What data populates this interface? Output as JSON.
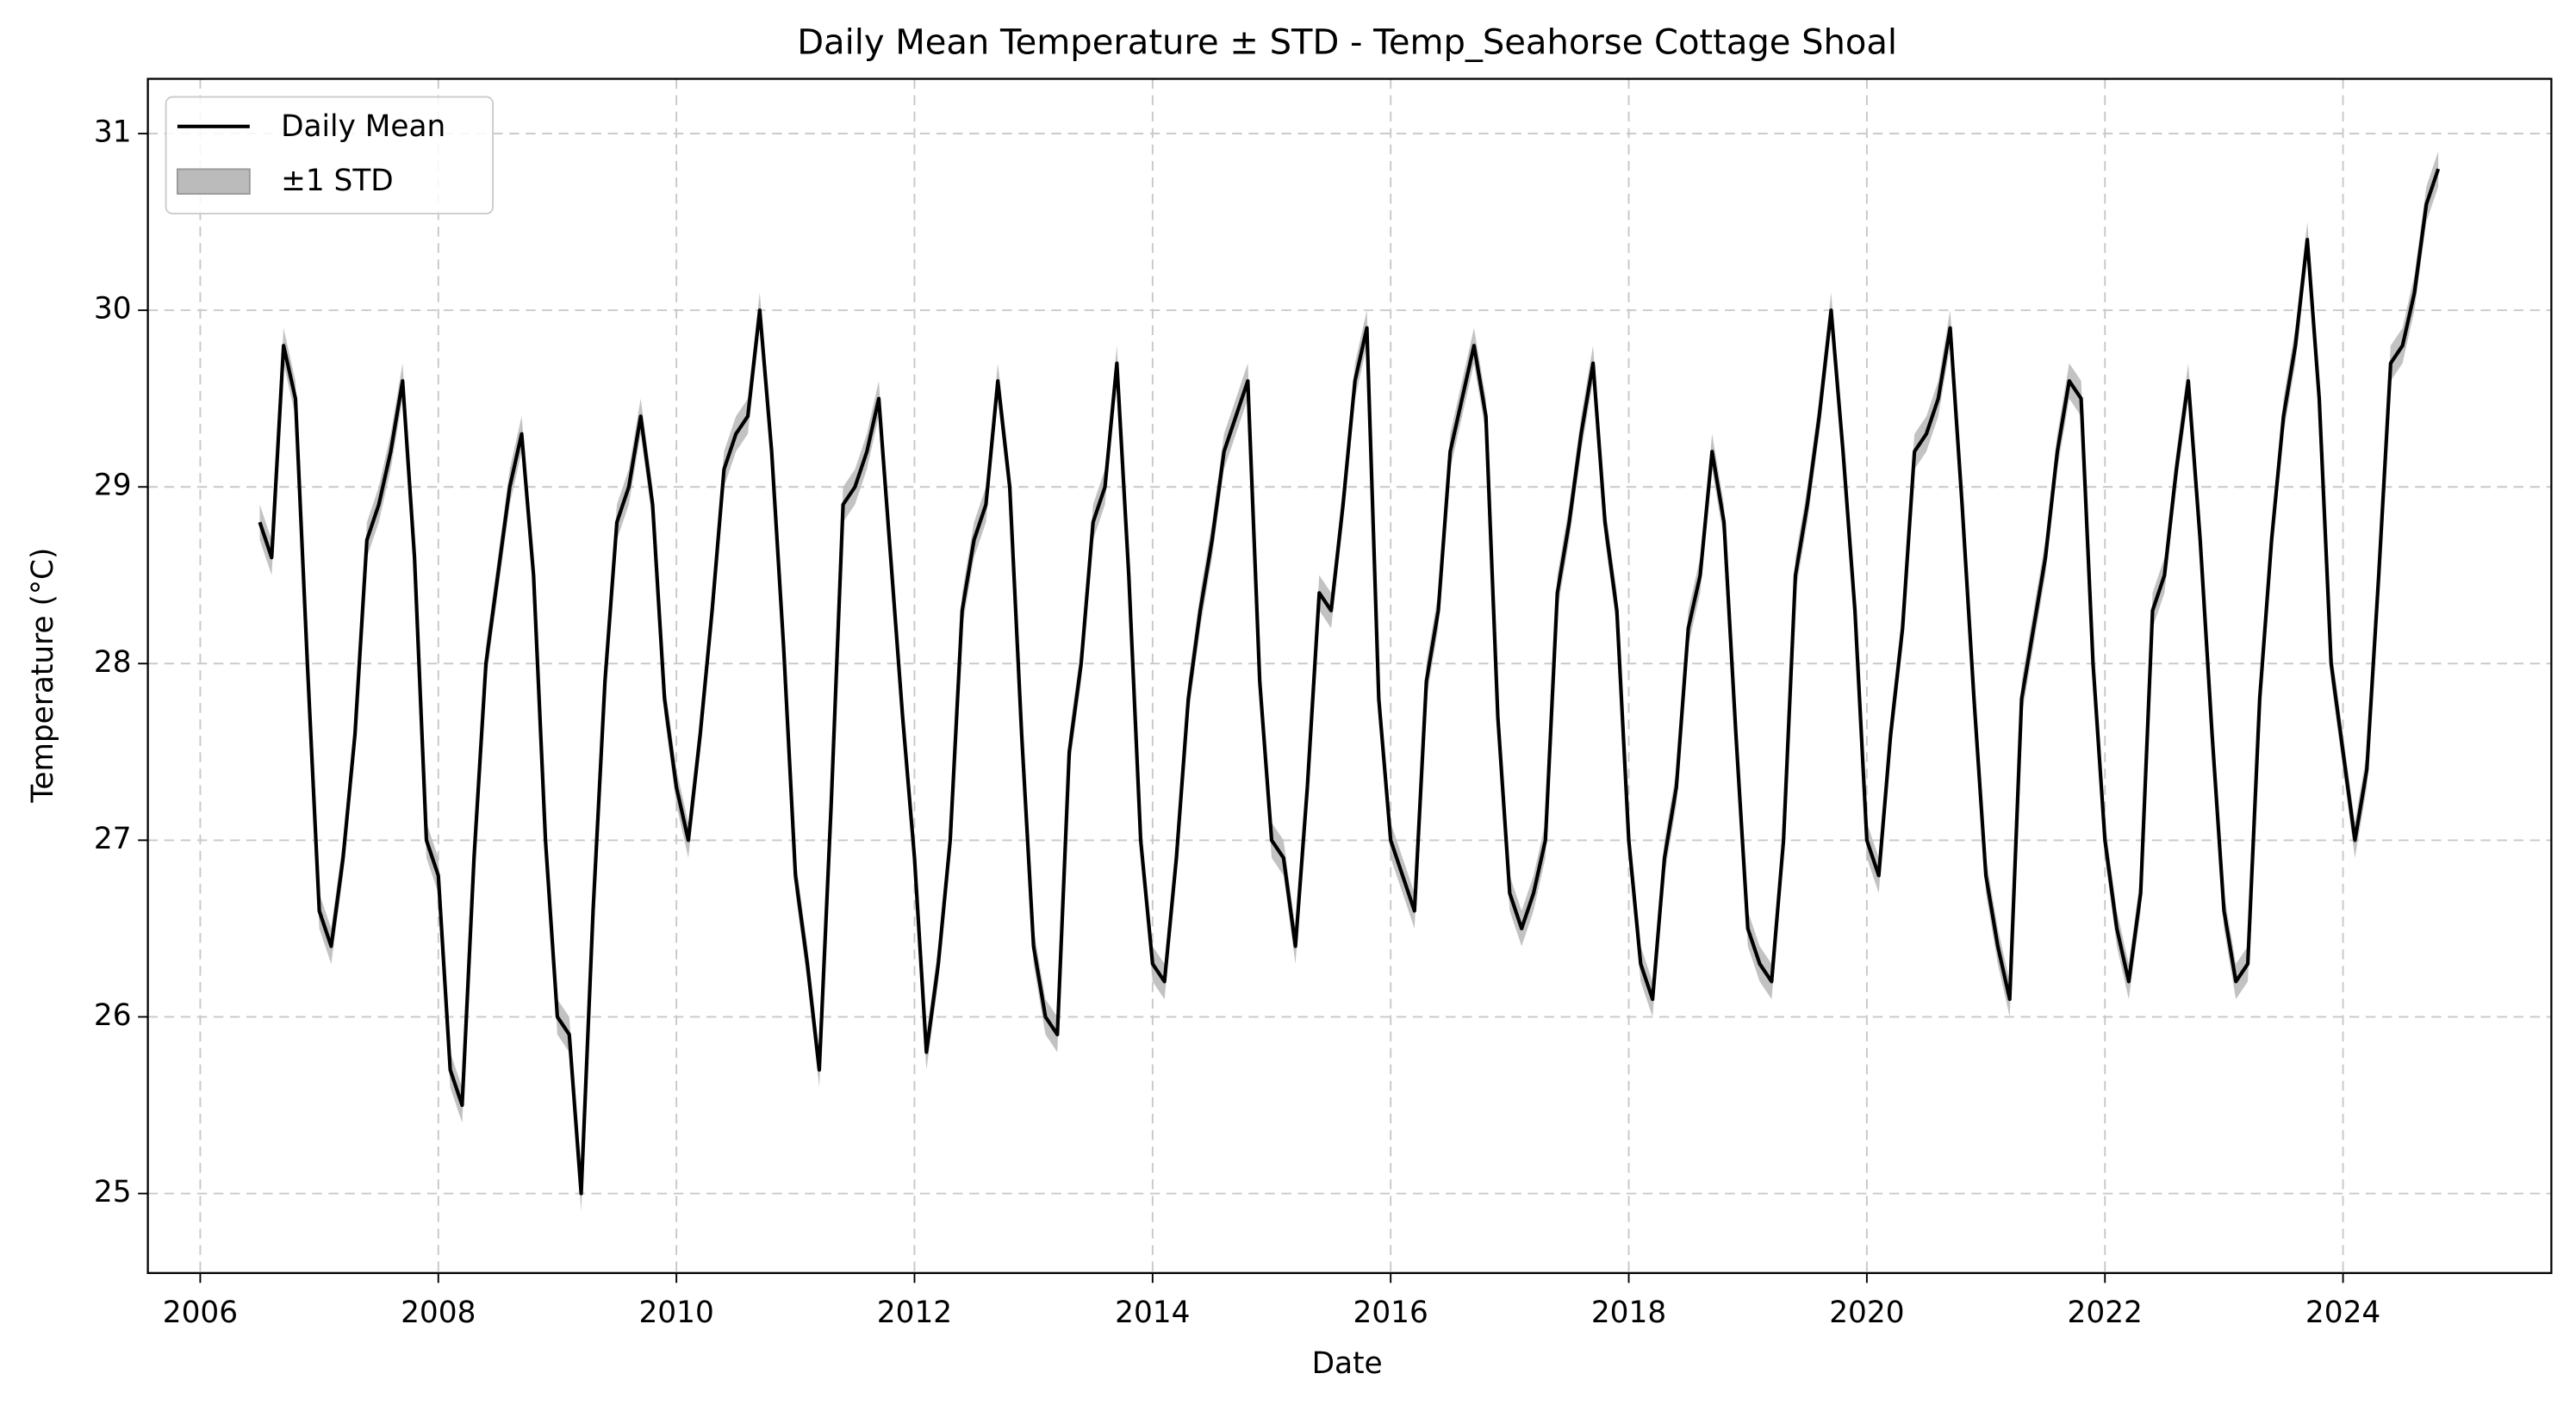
{
  "chart_data": {
    "type": "line",
    "title": "Daily Mean Temperature ± STD - Temp_Seahorse Cottage Shoal",
    "x_label": "Date",
    "y_label": "Temperature (°C)",
    "x": [
      2006.5,
      2006.6,
      2006.7,
      2006.8,
      2006.9,
      2007.0,
      2007.1,
      2007.2,
      2007.3,
      2007.4,
      2007.5,
      2007.6,
      2007.7,
      2007.8,
      2007.9,
      2008.0,
      2008.1,
      2008.2,
      2008.3,
      2008.4,
      2008.5,
      2008.6,
      2008.7,
      2008.8,
      2008.9,
      2009.0,
      2009.1,
      2009.2,
      2009.3,
      2009.4,
      2009.5,
      2009.6,
      2009.7,
      2009.8,
      2009.9,
      2010.0,
      2010.1,
      2010.2,
      2010.3,
      2010.4,
      2010.5,
      2010.6,
      2010.7,
      2010.8,
      2010.9,
      2011.0,
      2011.1,
      2011.2,
      2011.3,
      2011.4,
      2011.5,
      2011.6,
      2011.7,
      2011.8,
      2011.9,
      2012.0,
      2012.1,
      2012.2,
      2012.3,
      2012.4,
      2012.5,
      2012.6,
      2012.7,
      2012.8,
      2012.9,
      2013.0,
      2013.1,
      2013.2,
      2013.3,
      2013.4,
      2013.5,
      2013.6,
      2013.7,
      2013.8,
      2013.9,
      2014.0,
      2014.1,
      2014.2,
      2014.3,
      2014.4,
      2014.5,
      2014.6,
      2014.7,
      2014.8,
      2014.9,
      2015.0,
      2015.1,
      2015.2,
      2015.3,
      2015.4,
      2015.5,
      2015.6,
      2015.7,
      2015.8,
      2015.9,
      2016.0,
      2016.1,
      2016.2,
      2016.3,
      2016.4,
      2016.5,
      2016.6,
      2016.7,
      2016.8,
      2016.9,
      2017.0,
      2017.1,
      2017.2,
      2017.3,
      2017.4,
      2017.5,
      2017.6,
      2017.7,
      2017.8,
      2017.9,
      2018.0,
      2018.1,
      2018.2,
      2018.3,
      2018.4,
      2018.5,
      2018.6,
      2018.7,
      2018.8,
      2018.9,
      2019.0,
      2019.1,
      2019.2,
      2019.3,
      2019.4,
      2019.5,
      2019.6,
      2019.7,
      2019.8,
      2019.9,
      2020.0,
      2020.1,
      2020.2,
      2020.3,
      2020.4,
      2020.5,
      2020.6,
      2020.7,
      2020.8,
      2020.9,
      2021.0,
      2021.1,
      2021.2,
      2021.3,
      2021.4,
      2021.5,
      2021.6,
      2021.7,
      2021.8,
      2021.9,
      2022.0,
      2022.1,
      2022.2,
      2022.3,
      2022.4,
      2022.5,
      2022.6,
      2022.7,
      2022.8,
      2022.9,
      2023.0,
      2023.1,
      2023.2,
      2023.3,
      2023.4,
      2023.5,
      2023.6,
      2023.7,
      2023.8,
      2023.9,
      2024.0,
      2024.1,
      2024.2,
      2024.3,
      2024.4,
      2024.5,
      2024.6,
      2024.7,
      2024.8
    ],
    "series": [
      {
        "name": "Daily Mean",
        "color": "#000000",
        "values": [
          28.8,
          28.6,
          29.8,
          29.5,
          28.0,
          26.6,
          26.4,
          26.9,
          27.6,
          28.7,
          28.9,
          29.2,
          29.6,
          28.6,
          27.0,
          26.8,
          25.7,
          25.5,
          26.9,
          28.0,
          28.5,
          29.0,
          29.3,
          28.5,
          27.0,
          26.0,
          25.9,
          25.0,
          26.6,
          27.9,
          28.8,
          29.0,
          29.4,
          28.9,
          27.8,
          27.3,
          27.0,
          27.6,
          28.3,
          29.1,
          29.3,
          29.4,
          30.0,
          29.2,
          28.1,
          26.8,
          26.3,
          25.7,
          27.2,
          28.9,
          29.0,
          29.2,
          29.5,
          28.6,
          27.7,
          26.9,
          25.8,
          26.3,
          27.0,
          28.3,
          28.7,
          28.9,
          29.6,
          29.0,
          27.6,
          26.4,
          26.0,
          25.9,
          27.5,
          28.0,
          28.8,
          29.0,
          29.7,
          28.5,
          27.0,
          26.3,
          26.2,
          26.9,
          27.8,
          28.3,
          28.7,
          29.2,
          29.4,
          29.6,
          27.9,
          27.0,
          26.9,
          26.4,
          27.3,
          28.4,
          28.3,
          28.9,
          29.6,
          29.9,
          27.8,
          27.0,
          26.8,
          26.6,
          27.9,
          28.3,
          29.2,
          29.5,
          29.8,
          29.4,
          27.7,
          26.7,
          26.5,
          26.7,
          27.0,
          28.4,
          28.8,
          29.3,
          29.7,
          28.8,
          28.3,
          27.0,
          26.3,
          26.1,
          26.9,
          27.3,
          28.2,
          28.5,
          29.2,
          28.8,
          27.6,
          26.5,
          26.3,
          26.2,
          27.0,
          28.5,
          28.9,
          29.4,
          30.0,
          29.2,
          28.3,
          27.0,
          26.8,
          27.6,
          28.2,
          29.2,
          29.3,
          29.5,
          29.9,
          28.9,
          27.8,
          26.8,
          26.4,
          26.1,
          27.8,
          28.2,
          28.6,
          29.2,
          29.6,
          29.5,
          28.0,
          27.0,
          26.5,
          26.2,
          26.7,
          28.3,
          28.5,
          29.1,
          29.6,
          28.7,
          27.6,
          26.6,
          26.2,
          26.3,
          27.8,
          28.7,
          29.4,
          29.8,
          30.4,
          29.5,
          28.0,
          27.5,
          27.0,
          27.4,
          28.5,
          29.7,
          29.8,
          30.1,
          30.6,
          30.8
        ]
      },
      {
        "name": "±1 STD",
        "color": "#bbbbbb",
        "values": [
          0.1,
          0.1,
          0.1,
          0.1,
          0.1,
          0.1,
          0.1,
          0.1,
          0.1,
          0.1,
          0.1,
          0.1,
          0.1,
          0.1,
          0.1,
          0.1,
          0.1,
          0.1,
          0.1,
          0.1,
          0.1,
          0.1,
          0.1,
          0.1,
          0.1,
          0.1,
          0.1,
          0.1,
          0.1,
          0.1,
          0.1,
          0.1,
          0.1,
          0.1,
          0.1,
          0.1,
          0.1,
          0.1,
          0.1,
          0.1,
          0.1,
          0.1,
          0.1,
          0.1,
          0.1,
          0.1,
          0.1,
          0.1,
          0.1,
          0.1,
          0.1,
          0.1,
          0.1,
          0.1,
          0.1,
          0.1,
          0.1,
          0.1,
          0.1,
          0.1,
          0.1,
          0.1,
          0.1,
          0.1,
          0.1,
          0.1,
          0.1,
          0.1,
          0.1,
          0.1,
          0.1,
          0.1,
          0.1,
          0.1,
          0.1,
          0.1,
          0.1,
          0.1,
          0.1,
          0.1,
          0.1,
          0.1,
          0.1,
          0.1,
          0.1,
          0.1,
          0.1,
          0.1,
          0.1,
          0.1,
          0.1,
          0.1,
          0.1,
          0.1,
          0.1,
          0.1,
          0.1,
          0.1,
          0.1,
          0.1,
          0.1,
          0.1,
          0.1,
          0.1,
          0.1,
          0.1,
          0.1,
          0.1,
          0.1,
          0.1,
          0.1,
          0.1,
          0.1,
          0.1,
          0.1,
          0.1,
          0.1,
          0.1,
          0.1,
          0.1,
          0.1,
          0.1,
          0.1,
          0.1,
          0.1,
          0.1,
          0.1,
          0.1,
          0.1,
          0.1,
          0.1,
          0.1,
          0.1,
          0.1,
          0.1,
          0.1,
          0.1,
          0.1,
          0.1,
          0.1,
          0.1,
          0.1,
          0.1,
          0.1,
          0.1,
          0.1,
          0.1,
          0.1,
          0.1,
          0.1,
          0.1,
          0.1,
          0.1,
          0.1,
          0.1,
          0.1,
          0.1,
          0.1,
          0.1,
          0.1,
          0.1,
          0.1,
          0.1,
          0.1,
          0.1,
          0.1,
          0.1,
          0.1,
          0.1,
          0.1,
          0.1,
          0.1,
          0.1,
          0.1,
          0.1,
          0.1,
          0.1,
          0.1,
          0.1,
          0.1,
          0.1,
          0.1,
          0.1,
          0.1
        ]
      }
    ],
    "xlim": [
      2005.56,
      2025.75
    ],
    "xticks": [
      2006,
      2008,
      2010,
      2012,
      2014,
      2016,
      2018,
      2020,
      2022,
      2024
    ],
    "ylim": [
      24.55,
      31.31
    ],
    "yticks": [
      25,
      26,
      27,
      28,
      29,
      30,
      31
    ],
    "grid": true,
    "legend": "upper left"
  }
}
